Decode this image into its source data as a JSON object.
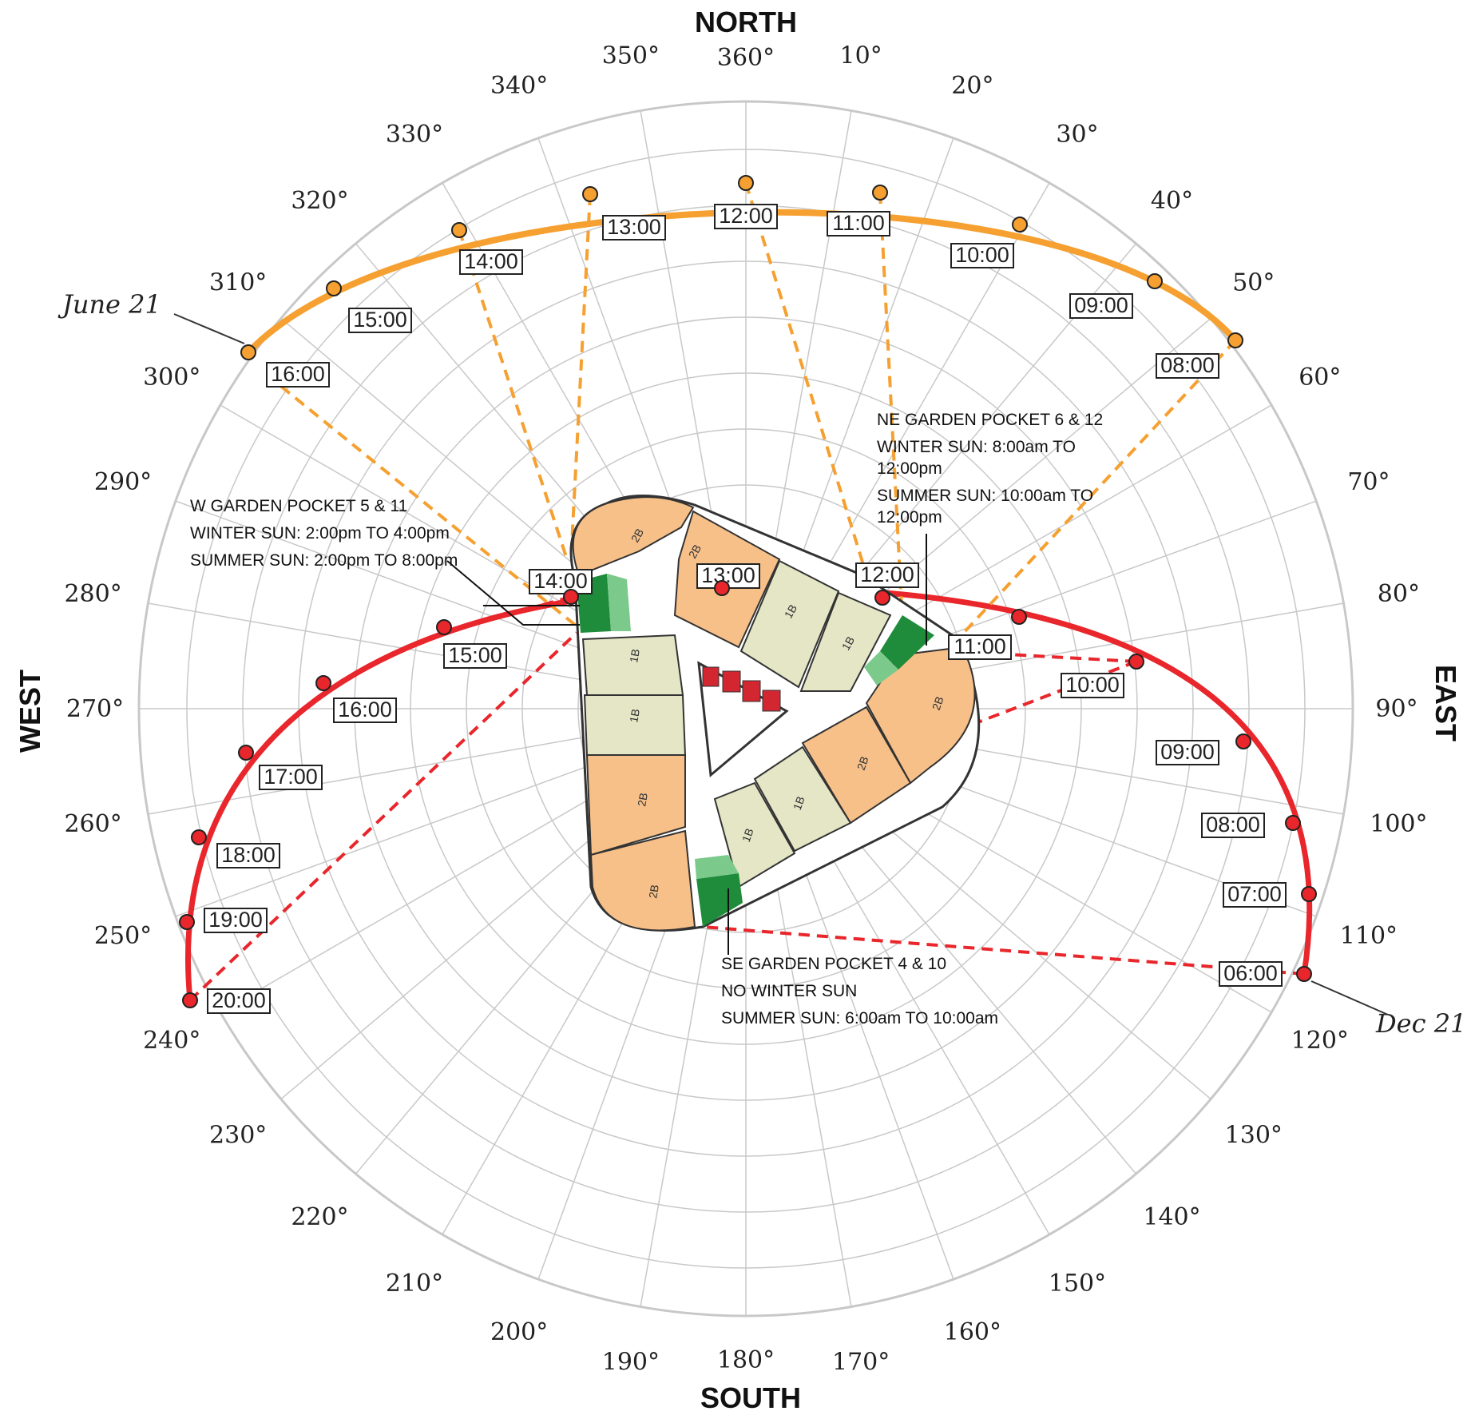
{
  "compass": {
    "north": "NORTH",
    "south": "SOUTH",
    "east": "EAST",
    "west": "WEST",
    "degree_labels": [
      "360°",
      "10°",
      "20°",
      "30°",
      "40°",
      "50°",
      "60°",
      "70°",
      "80°",
      "90°",
      "100°",
      "110°",
      "120°",
      "130°",
      "140°",
      "150°",
      "160°",
      "170°",
      "180°",
      "190°",
      "200°",
      "210°",
      "220°",
      "230°",
      "240°",
      "250°",
      "260°",
      "270°",
      "280°",
      "290°",
      "300°",
      "310°",
      "320°",
      "330°",
      "340°",
      "350°"
    ]
  },
  "paths": {
    "summer": {
      "date_label": "June 21",
      "color": "#f5a030",
      "hours": [
        "08:00",
        "09:00",
        "10:00",
        "11:00",
        "12:00",
        "13:00",
        "14:00",
        "15:00",
        "16:00"
      ]
    },
    "winter": {
      "date_label": "Dec 21",
      "color": "#e8262b",
      "hours": [
        "06:00",
        "07:00",
        "08:00",
        "09:00",
        "10:00",
        "11:00",
        "12:00",
        "13:00",
        "14:00",
        "15:00",
        "16:00",
        "17:00",
        "18:00",
        "19:00",
        "20:00"
      ]
    }
  },
  "notes": {
    "west": {
      "title": "W GARDEN POCKET 5 & 11",
      "winter": "WINTER SUN: 2:00pm TO 4:00pm",
      "summer": "SUMMER SUN: 2:00pm TO 8:00pm"
    },
    "northeast": {
      "title": "NE GARDEN POCKET 6 & 12",
      "winter_1": "WINTER SUN: 8:00am TO",
      "winter_2": "12:00pm",
      "summer_1": "SUMMER SUN: 10:00am TO",
      "summer_2": "12:00pm"
    },
    "southeast": {
      "title": "SE GARDEN POCKET 4 & 10",
      "winter": "NO WINTER SUN",
      "summer": "SUMMER SUN: 6:00am TO 10:00am"
    }
  },
  "units": [
    "2B",
    "1B",
    "1B",
    "2B",
    "1B",
    "1B",
    "2B",
    "2B",
    "1B",
    "1B",
    "2B",
    "2B"
  ],
  "colors": {
    "unit_2b": "#f7c089",
    "unit_1b": "#e4e6c6",
    "garden_dark": "#1e8c3a",
    "garden_light": "#7cc98c",
    "grid": "#c8c8c8"
  }
}
